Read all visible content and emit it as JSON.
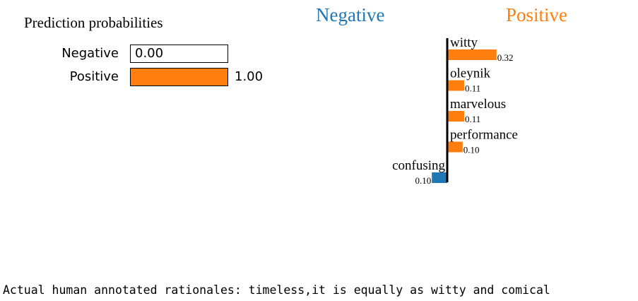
{
  "prediction": {
    "title": "Prediction probabilities",
    "rows": [
      {
        "label": "Negative",
        "value": 0.0,
        "display": "0.00"
      },
      {
        "label": "Positive",
        "value": 1.0,
        "display": "1.00"
      }
    ]
  },
  "headings": {
    "negative": "Negative",
    "positive": "Positive"
  },
  "colors": {
    "negative": "#1f77b4",
    "positive": "#ff7f0e"
  },
  "chart_data": {
    "type": "bar",
    "orientation": "horizontal",
    "categories": [
      "witty",
      "oleynik",
      "marvelous",
      "performance",
      "confusing"
    ],
    "values": [
      0.32,
      0.11,
      0.11,
      0.1,
      -0.1
    ],
    "value_labels": [
      "0.32",
      "0.11",
      "0.11",
      "0.10",
      "0.10"
    ],
    "title": "",
    "xlabel": "",
    "ylabel": "",
    "grid": false
  },
  "rationale": {
    "text": "Actual human annotated rationales: timeless,it is equally as witty and comical"
  }
}
